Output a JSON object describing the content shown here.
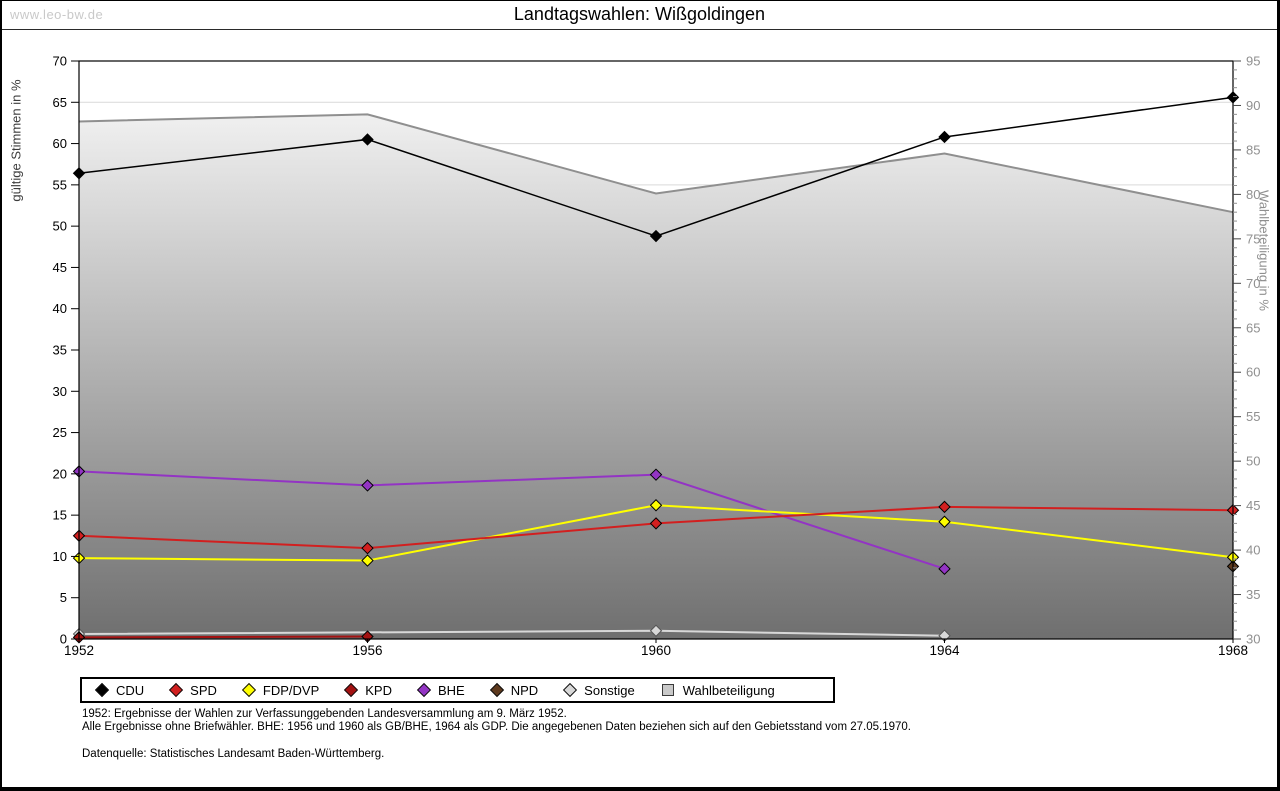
{
  "page": {
    "watermark": "www.leo-bw.de",
    "title": "Landtagswahlen: Wißgoldingen"
  },
  "chart_data": {
    "type": "line",
    "title": "Landtagswahlen: Wißgoldingen",
    "categories": [
      1952,
      1956,
      1960,
      1964,
      1968
    ],
    "axes": {
      "x": {
        "min": 1952,
        "max": 1968
      },
      "left": {
        "label": "gültige Stimmen in %",
        "min": 0,
        "max": 70,
        "step": 5
      },
      "right": {
        "label": "Wahlbeteiligung in %",
        "min": 30,
        "max": 95,
        "step": 5,
        "minor_step": 1
      }
    },
    "grid": {
      "horizontal": true,
      "color": "#d9d9d9"
    },
    "legend_position": "bottom",
    "series": [
      {
        "name": "CDU",
        "axis": "left",
        "type": "line",
        "marker": "diamond",
        "color": "#000000",
        "points": [
          [
            1952,
            56.4
          ],
          [
            1956,
            60.5
          ],
          [
            1960,
            48.8
          ],
          [
            1964,
            60.8
          ],
          [
            1968,
            65.6
          ]
        ]
      },
      {
        "name": "SPD",
        "axis": "left",
        "type": "line",
        "marker": "diamond",
        "color": "#d21f1f",
        "points": [
          [
            1952,
            12.5
          ],
          [
            1956,
            11.0
          ],
          [
            1960,
            14.0
          ],
          [
            1964,
            16.0
          ],
          [
            1968,
            15.6
          ]
        ]
      },
      {
        "name": "FDP/DVP",
        "axis": "left",
        "type": "line",
        "marker": "diamond",
        "color": "#ffff00",
        "points": [
          [
            1952,
            9.8
          ],
          [
            1956,
            9.5
          ],
          [
            1960,
            16.2
          ],
          [
            1964,
            14.2
          ],
          [
            1968,
            9.9
          ]
        ]
      },
      {
        "name": "KPD",
        "axis": "left",
        "type": "line",
        "marker": "diamond",
        "color": "#a31111",
        "points": [
          [
            1952,
            0.2
          ],
          [
            1956,
            0.3
          ]
        ]
      },
      {
        "name": "BHE",
        "axis": "left",
        "type": "line",
        "marker": "diamond",
        "color": "#9334c4",
        "points": [
          [
            1952,
            20.3
          ],
          [
            1956,
            18.6
          ],
          [
            1960,
            19.9
          ],
          [
            1964,
            8.5
          ]
        ]
      },
      {
        "name": "NPD",
        "axis": "left",
        "type": "line",
        "marker": "diamond",
        "color": "#5e3a1e",
        "points": [
          [
            1968,
            8.8
          ]
        ]
      },
      {
        "name": "Sonstige",
        "axis": "left",
        "type": "line",
        "marker": "diamond",
        "color": "#d8d8d8",
        "points": [
          [
            1952,
            0.6
          ],
          [
            1960,
            1.0
          ],
          [
            1964,
            0.4
          ]
        ]
      },
      {
        "name": "Wahlbeteiligung",
        "axis": "right",
        "type": "area",
        "marker": "none",
        "color": "#c9c9c9",
        "outline": "#8f8f8f",
        "fill_gradient": [
          "#fdfdfd",
          "#6f6f6f"
        ],
        "points": [
          [
            1952,
            88.2
          ],
          [
            1956,
            89.0
          ],
          [
            1960,
            80.1
          ],
          [
            1964,
            84.6
          ],
          [
            1968,
            78.0
          ]
        ]
      }
    ]
  },
  "legend": {
    "items": [
      {
        "label": "CDU",
        "shape": "diamond",
        "color": "#000000"
      },
      {
        "label": "SPD",
        "shape": "diamond",
        "color": "#d21f1f"
      },
      {
        "label": "FDP/DVP",
        "shape": "diamond",
        "color": "#ffff00"
      },
      {
        "label": "KPD",
        "shape": "diamond",
        "color": "#a31111"
      },
      {
        "label": "BHE",
        "shape": "diamond",
        "color": "#9334c4"
      },
      {
        "label": "NPD",
        "shape": "diamond",
        "color": "#5e3a1e"
      },
      {
        "label": "Sonstige",
        "shape": "diamond",
        "color": "#d8d8d8"
      },
      {
        "label": "Wahlbeteiligung",
        "shape": "square",
        "color": "#c9c9c9"
      }
    ]
  },
  "footnotes": {
    "line1": "1952: Ergebnisse der Wahlen zur Verfassunggebenden Landesversammlung am 9. März 1952.",
    "line2": "Alle Ergebnisse ohne Briefwähler. BHE: 1956 und 1960 als GB/BHE, 1964 als GDP. Die angegebenen Daten beziehen sich auf den Gebietsstand vom 27.05.1970.",
    "source": "Datenquelle: Statistisches Landesamt Baden-Württemberg."
  }
}
